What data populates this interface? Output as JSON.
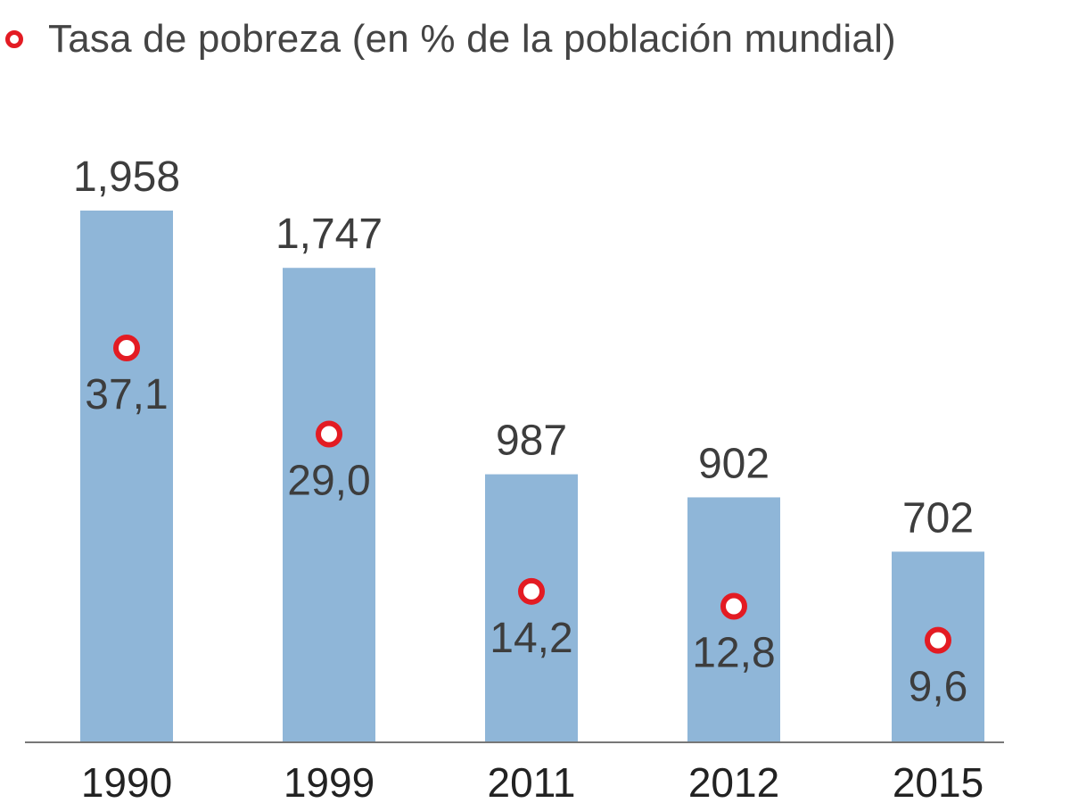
{
  "chart_data": {
    "type": "bar",
    "categories": [
      "1990",
      "1999",
      "2011",
      "2012",
      "2015"
    ],
    "series": [
      {
        "values": [
          1958,
          1747,
          987,
          902,
          702
        ],
        "value_labels": [
          "1,958",
          "1,747",
          "987",
          "902",
          "702"
        ],
        "color": "#8fb6d8"
      },
      {
        "name": "Tasa de pobreza (en % de la población mundial)",
        "values": [
          37.1,
          29.0,
          14.2,
          12.8,
          9.6
        ],
        "value_labels": [
          "37,1",
          "29,0",
          "14,2",
          "12,8",
          "9,6"
        ],
        "color": "#e31b23",
        "marker": "hollow-circle"
      }
    ],
    "ylim": [
      0,
      2000
    ],
    "rate_ylim": [
      0,
      42
    ],
    "legend_position": "top-left",
    "grid": false
  },
  "legend": {
    "label": "Tasa de pobreza (en % de la población mundial)",
    "marker_icon": "hollow-circle-icon"
  }
}
